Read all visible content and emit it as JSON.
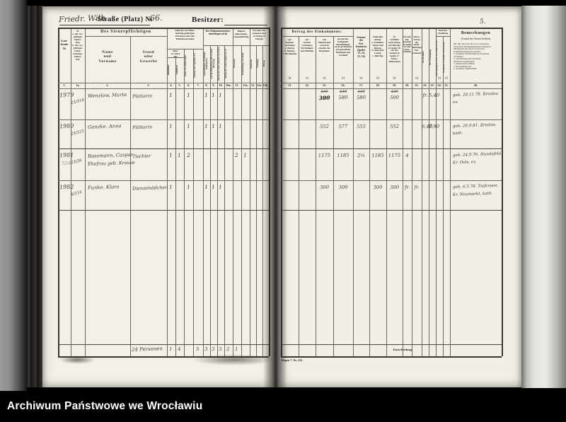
{
  "watermark": {
    "text": "Archiwum Państwowe we Wrocławiu"
  },
  "page_number": "5.",
  "colors": {
    "paper": "#f2f0e9",
    "ink": "#3a352e",
    "caption_background": "#000000",
    "caption_text": "#ffffff"
  },
  "header": {
    "street_handwritten": "Friedr. Wilh.",
    "street_printed": "-Straße (Platz) №",
    "house_number": "66.",
    "owner_label": "Besitzer:"
  },
  "left_table": {
    "col_numbers": [
      "1.",
      "1a.",
      "2.",
      "3.",
      "4.",
      "5.",
      "6.",
      "7.",
      "8.",
      "9.",
      "10.",
      "10a.",
      "11.",
      "11a.",
      "12.",
      "12a.",
      "12b."
    ],
    "headers": {
      "lfd": "Lau-\nfende\n№",
      "prev_no": "№\na. der vor-\njährigen\nSteuer-\nliste,\nb. der vor-\njährigen\nUeber-\nweisungs-\nSteuer-\nliste",
      "taxpayer_group": "Des Steuerpflichtigen",
      "name": "Name\nund\nVorname",
      "stand": "Stand\noder\nGewerbe",
      "household_group": "Zahl der zur Haus-\nhaltung gehörigen\nPersonen oder der\nEinzelsteuernden",
      "over14": "über\n14 Jahre\nalte",
      "male": "männlich",
      "female": "weiblich",
      "under14": "unter 14 Jahren alte",
      "sum_4_6": "Summe der Spalten 4-6",
      "exempt_group": "Der Einkommensteuer\nunterliegen nicht",
      "exempt_a": "wegen Bezuges von Militär-Einkommen",
      "exempt_b": "weil das Einkommen 420 ℳ nicht übersteigt",
      "exempt_c": "Summe der nicht steuerpfl. Personen",
      "exempt_d": "Summe der Zeilen (Spalte 8 u. 9)",
      "remain_group": "Bleiben\neinkommen-\nsteuerpflichtig",
      "remain_a": "Personen",
      "remain_b": "Haushaltungs-Vorstände",
      "deduct_group": "Von dem Ein-\nkommen sind\nin Abzug zu\nbringen",
      "deduct_a": "Steuersatz",
      "deduct_b": "Wohnung",
      "deduct_c": "Betrag"
    }
  },
  "right_table": {
    "col_numbers": [
      "13.",
      "14.",
      "15.",
      "16.",
      "17.",
      "18.",
      "19.",
      "20.",
      "21.",
      "22.",
      "23.",
      "24.",
      "25.",
      "26."
    ],
    "unit_symbol": "ℳ",
    "unit_cols": [
      "13",
      "14",
      "15",
      "16",
      "17",
      "18",
      "19",
      "21",
      "24",
      "25"
    ],
    "headers": {
      "income_group": "Betrag des Einkommens:",
      "c13": "aus\nKapital-\nvermögen\na. Zinsen,\nb. Renten,\nc. Dividenden",
      "c14": "aus\nGrund-\nvermögen,\nPachtungen\nund Miethen",
      "c15": "aus\nHandel und\nGewerbe\neinschl. des\nBergbaues",
      "c16": "aus gewinn-\nbringender\nBeschäftigung\nsowie aus Rechten\nauf periodische\nHebungen und\nVortheile",
      "c17": "Summe\ndes\nEin-\nkommens\n(Spalte\n13, 14,\n15, 16)",
      "c18": "Zulässiger\nAbzug:\na. Schulden-\nzinsen und\nRenten,\nb. dauernde\nLasten,\nc. Beiträge",
      "c19": "Es\nverbleibt\nnach Abzug\nder Beträge\nin Spalte 18\nvon der\nSumme in\nSpalte 17\nJahres-\neinkommen",
      "c20": "Von dem\nEin-\nkommen\nin Spalte\n19 sind\nausge-\nschieden",
      "c21": "Jahres-\nbetrag\ndes\nsteuer-\npflichtigen\nEin-\nkommens",
      "c22": "Im Vorjahre",
      "c23": "Der Veranlagung",
      "zustellung_group": "Nach der\nZustellung",
      "c24": "sind beigefügt § 18 § 19 d. Eink.-St.-Ges.",
      "c25": "beträgt der veranlagte Steuerbetrag",
      "remarks_title": "Bemerkungen",
      "remarks_sub": "(Grund der Steuerfreiheit)",
      "remarks_nb": "NB. Hier sind auch die etwa vorhandenen\nbesonderen Veranlagungsgründe anzugeben.\nMit Bleistift sind die in § 19 des Ein-\nkommensteuergesetzes genannt:\na. Vermehrte Verpflichtung zur Erziehung\n    der Kinder;\nb. Verpflichtung zum Unterhalte\n    mittelloser Angehörigen;\nc. andauernde Krankheit;\nd. Verschuldung und\ne. besondere Unglücksfälle."
    },
    "footer": {
      "form_ref": "Bogen 7.  Nr. 252.",
      "summary_word": "Entscheidung"
    }
  },
  "rows": [
    {
      "no": "1979",
      "prev": "23/318",
      "name": "Wenzlow, Marta",
      "stand": "Plätterin",
      "marks": [
        {
          "col": "4",
          "v": "1"
        },
        {
          "col": "6",
          "v": "1"
        },
        {
          "col": "8",
          "v": "1"
        },
        {
          "col": "9",
          "v": "1"
        },
        {
          "col": "10",
          "v": "1"
        }
      ],
      "income": [
        {
          "col": "15",
          "value": "380",
          "crossed": "445",
          "bold": true
        },
        {
          "col": "16",
          "value": "580",
          "crossed": "440"
        },
        {
          "col": "17",
          "value": "580",
          "crossed": "440"
        },
        {
          "col": "19",
          "value": "500",
          "crossed": "420"
        },
        {
          "col": "22",
          "value": "fr."
        },
        {
          "col": "23",
          "value": "5,40"
        }
      ],
      "remark1": "geb. 28.11.78. Breslau",
      "remark2": "ev."
    },
    {
      "no": "1980",
      "prev": "23/121",
      "name": "Ganzke, Anna",
      "stand": "Plätterin",
      "marks": [
        {
          "col": "4",
          "v": "1"
        },
        {
          "col": "6",
          "v": "1"
        },
        {
          "col": "8",
          "v": "1"
        },
        {
          "col": "9",
          "v": "1"
        },
        {
          "col": "10",
          "v": "1"
        }
      ],
      "income": [
        {
          "col": "15",
          "value": "552"
        },
        {
          "col": "16",
          "value": "577"
        },
        {
          "col": "17",
          "value": "555"
        },
        {
          "col": "19",
          "value": "552"
        },
        {
          "col": "22",
          "value": "6,40"
        },
        {
          "col": "23",
          "value": "2,90"
        }
      ],
      "remark1": "geb. 26.9.81. Breslau",
      "remark2": "kath."
    },
    {
      "no": "1981",
      "pencil_no": "534",
      "prev": "23/26",
      "name": "Rossmann, Caspar",
      "name2": "Ehefrau geb. Krause",
      "stand": "Tischler",
      "marks": [
        {
          "col": "4",
          "v": "1"
        },
        {
          "col": "5",
          "v": "1"
        },
        {
          "col": "6",
          "v": "2"
        },
        {
          "col": "11",
          "v": "2"
        },
        {
          "col": "11a",
          "v": "1"
        }
      ],
      "income": [
        {
          "col": "15",
          "value": "1175"
        },
        {
          "col": "16",
          "value": "1185"
        },
        {
          "col": "17",
          "value": "2¼"
        },
        {
          "col": "18",
          "value": "1185"
        },
        {
          "col": "19",
          "value": "1175"
        },
        {
          "col": "20",
          "value": "4"
        }
      ],
      "remark1": "geb. 24.9.76. Hundsfeld,",
      "remark2": "Kr. Oels, ev."
    },
    {
      "no": "1982",
      "prev": "4/314",
      "name": "Funke, Klara",
      "stand": "Dienstmädchen",
      "marks": [
        {
          "col": "4",
          "v": "1"
        },
        {
          "col": "6",
          "v": "1"
        },
        {
          "col": "8",
          "v": "1"
        },
        {
          "col": "9",
          "v": "1"
        },
        {
          "col": "10",
          "v": "1"
        }
      ],
      "income": [
        {
          "col": "15",
          "value": "300"
        },
        {
          "col": "16",
          "value": "300"
        },
        {
          "col": "18",
          "value": "300"
        },
        {
          "col": "19",
          "value": "300"
        },
        {
          "col": "20",
          "value": "fr."
        },
        {
          "col": "21",
          "value": "fr."
        }
      ],
      "remark1": "geb. 6.5.78. Tiefensee,",
      "remark2": "Kr. Neumarkt, kath."
    }
  ],
  "summary": {
    "label": "24 Personen",
    "marks": [
      {
        "col": "4",
        "v": "1"
      },
      {
        "col": "5",
        "v": "4"
      },
      {
        "col": "7",
        "v": "5"
      },
      {
        "col": "8",
        "v": "3"
      },
      {
        "col": "9",
        "v": "3"
      },
      {
        "col": "10",
        "v": "3"
      },
      {
        "col": "10a",
        "v": "2"
      },
      {
        "col": "11",
        "v": "1"
      }
    ]
  }
}
